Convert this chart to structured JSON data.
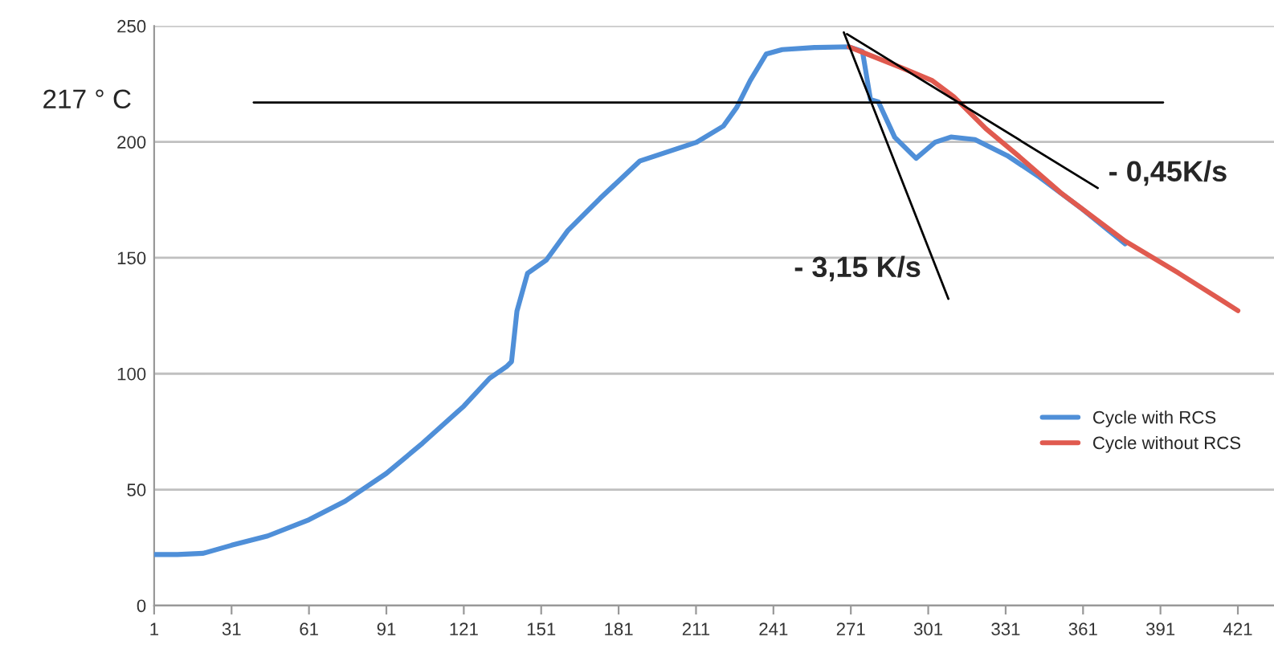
{
  "chart_data": {
    "type": "line",
    "xlim": [
      1,
      435
    ],
    "xticks": [
      1,
      31,
      61,
      91,
      121,
      151,
      181,
      211,
      241,
      271,
      301,
      331,
      361,
      391,
      421
    ],
    "ylim": [
      0,
      250
    ],
    "yticks": [
      0,
      50,
      100,
      150,
      200,
      250
    ],
    "grid": "y",
    "legend": "right",
    "series": [
      {
        "name": "Cycle with RCS",
        "color": "#4f8fd8",
        "x": [
          1,
          10,
          20,
          31,
          45,
          61,
          75,
          91,
          105,
          121,
          131,
          137.5,
          139.5,
          141.6,
          145.7,
          153,
          161.3,
          173.8,
          189.3,
          211.2,
          221.6,
          226.8,
          232,
          238.2,
          244.4,
          256.9,
          270.3,
          275.5,
          278.6,
          281.7,
          288,
          296.3,
          303.6,
          309.8,
          319.1,
          331.6,
          344,
          360.7,
          377.3
        ],
        "values": [
          22,
          22,
          22.5,
          26,
          30,
          37,
          45,
          57,
          70,
          86,
          98,
          103,
          105.2,
          127,
          143.3,
          149,
          161.7,
          175.6,
          191.8,
          199.8,
          206.8,
          214.9,
          226.4,
          237.9,
          239.8,
          240.7,
          241,
          239.1,
          218.3,
          217.2,
          202,
          192.9,
          199.8,
          202.1,
          201,
          194.1,
          184.9,
          171,
          156
        ]
      },
      {
        "name": "Cycle without RCS",
        "color": "#e05a4f",
        "x": [
          270.3,
          279.7,
          290.1,
          302.6,
          310.9,
          323.3,
          335.8,
          352.4,
          377.3,
          398,
          421
        ],
        "values": [
          241,
          236.8,
          232.2,
          226.4,
          219.5,
          205.7,
          194.1,
          178,
          157.2,
          143.4,
          127.2
        ]
      },
      {
        "type": "line",
        "color": "#000000",
        "x": [
          39.6,
          392
        ],
        "values": [
          217,
          217
        ]
      },
      {
        "type": "line",
        "color": "#000000",
        "x": [
          268.3,
          308.8
        ],
        "values": [
          247.2,
          132.3
        ]
      },
      {
        "type": "line",
        "color": "#000000",
        "x": [
          269.5,
          366.7
        ],
        "values": [
          246.5,
          180.1
        ]
      }
    ],
    "annotations": [
      "217 ° C",
      "- 0,45K/s",
      "- 3,15 K/s"
    ]
  }
}
